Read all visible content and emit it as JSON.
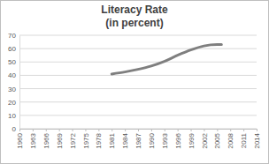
{
  "chart_data": {
    "type": "line",
    "title": "Literacy Rate",
    "subtitle": "(in percent)",
    "x": [
      1981,
      1984,
      1987,
      1990,
      1993,
      1996,
      1999,
      2002,
      2005,
      2006
    ],
    "values": [
      41,
      42.5,
      44.5,
      47,
      50.5,
      55,
      59,
      62,
      63,
      63
    ],
    "color": "#7f7f7f",
    "xlim": [
      1960,
      2014
    ],
    "xticks": [
      1960,
      1963,
      1966,
      1969,
      1972,
      1975,
      1978,
      1981,
      1984,
      1987,
      1990,
      1993,
      1996,
      1999,
      2002,
      2005,
      2008,
      2011,
      2014
    ],
    "ylim": [
      0,
      70
    ],
    "yticks": [
      0,
      10,
      20,
      30,
      40,
      50,
      60,
      70
    ],
    "grid": true
  }
}
